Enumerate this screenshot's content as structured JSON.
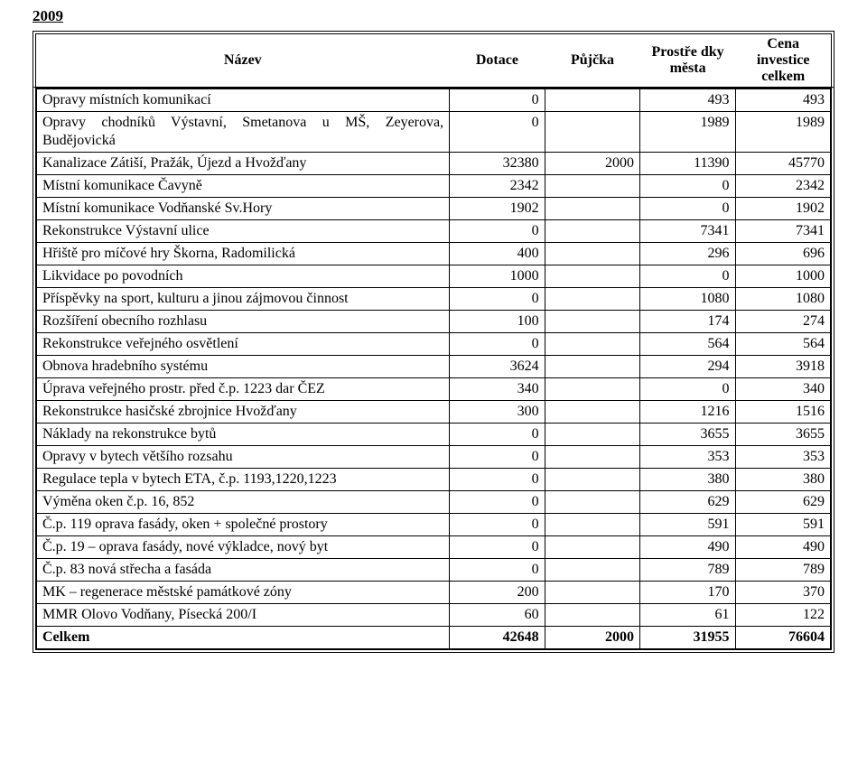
{
  "year": "2009",
  "header": {
    "name": "Název",
    "dotace": "Dotace",
    "pujcka": "Půjčka",
    "prostredky": "Prostře dky města",
    "cena": "Cena investice celkem"
  },
  "rows": [
    {
      "name": "Opravy místních komunikací",
      "a": "0",
      "c": "493",
      "d": "493"
    },
    {
      "name": "Opravy chodníků Výstavní, Smetanova u MŠ, Zeyerova, Budějovická",
      "a": "0",
      "c": "1989",
      "d": "1989"
    },
    {
      "name": "Kanalizace Zátiší, Pražák, Újezd a Hvožďany",
      "a": "32380",
      "b": "2000",
      "c": "11390",
      "d": "45770"
    },
    {
      "name": "Místní komunikace Čavyně",
      "a": "2342",
      "c": "0",
      "d": "2342"
    },
    {
      "name": "Místní komunikace Vodňanské Sv.Hory",
      "a": "1902",
      "c": "0",
      "d": "1902"
    },
    {
      "name": "Rekonstrukce Výstavní ulice",
      "a": "0",
      "c": "7341",
      "d": "7341"
    },
    {
      "name": "Hřiště pro míčové hry Škorna, Radomilická",
      "a": "400",
      "c": "296",
      "d": "696"
    },
    {
      "name": "Likvidace po povodních",
      "a": "1000",
      "c": "0",
      "d": "1000"
    },
    {
      "name": "Příspěvky na sport, kulturu a jinou zájmovou činnost",
      "a": "0",
      "c": "1080",
      "d": "1080"
    },
    {
      "name": "Rozšíření obecního rozhlasu",
      "a": "100",
      "c": "174",
      "d": "274"
    },
    {
      "name": "Rekonstrukce veřejného osvětlení",
      "a": "0",
      "c": "564",
      "d": "564"
    },
    {
      "name": "Obnova hradebního systému",
      "a": "3624",
      "c": "294",
      "d": "3918"
    },
    {
      "name": "Úprava veřejného prostr. před č.p. 1223 dar ČEZ",
      "a": "340",
      "c": "0",
      "d": "340"
    },
    {
      "name": "Rekonstrukce hasičské zbrojnice Hvožďany",
      "a": "300",
      "c": "1216",
      "d": "1516"
    },
    {
      "name": "Náklady na rekonstrukce bytů",
      "a": "0",
      "c": "3655",
      "d": "3655"
    },
    {
      "name": "Opravy v bytech většího rozsahu",
      "a": "0",
      "c": "353",
      "d": "353"
    },
    {
      "name": "Regulace tepla v bytech ETA, č.p. 1193,1220,1223",
      "a": "0",
      "c": "380",
      "d": "380"
    },
    {
      "name": "Výměna oken č.p. 16, 852",
      "a": "0",
      "c": "629",
      "d": "629"
    },
    {
      "name": "Č.p. 119 oprava fasády, oken + společné prostory",
      "a": "0",
      "c": "591",
      "d": "591"
    },
    {
      "name": "Č.p. 19 – oprava fasády, nové výkladce, nový byt",
      "a": "0",
      "c": "490",
      "d": "490"
    },
    {
      "name": "Č.p. 83 nová střecha a fasáda",
      "a": "0",
      "c": "789",
      "d": "789"
    },
    {
      "name": "MK – regenerace městské památkové zóny",
      "a": "200",
      "c": "170",
      "d": "370"
    },
    {
      "name": "MMR Olovo Vodňany, Písecká 200/I",
      "a": "60",
      "c": "61",
      "d": "122"
    }
  ],
  "total": {
    "name": "Celkem",
    "a": "42648",
    "b": "2000",
    "c": "31955",
    "d": "76604"
  }
}
